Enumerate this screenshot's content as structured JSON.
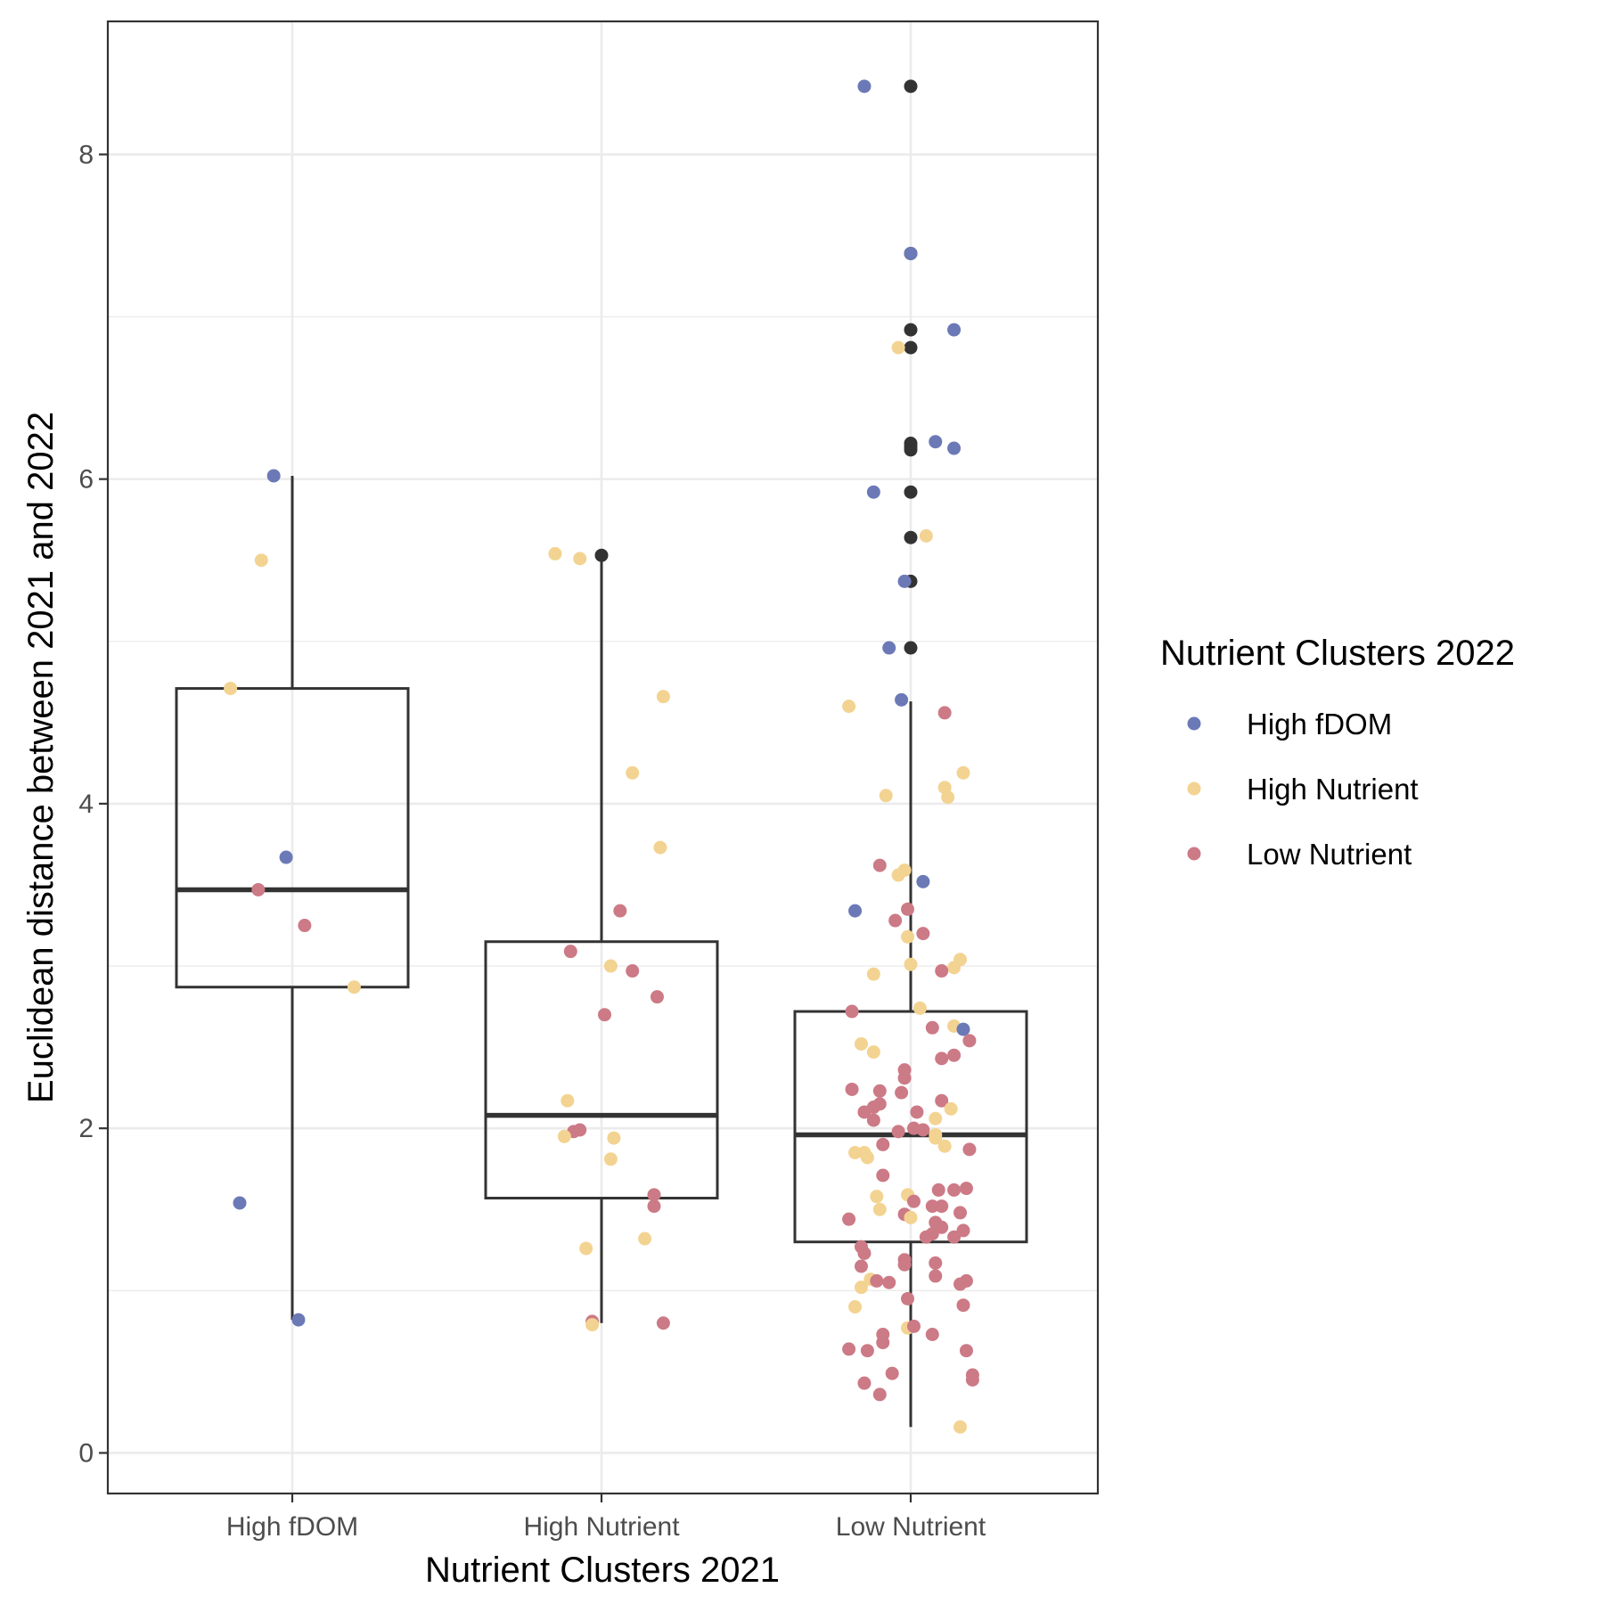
{
  "chart_data": {
    "type": "boxplot-jitter",
    "title": "",
    "xlabel": "Nutrient Clusters 2021",
    "ylabel": "Euclidean distance between 2021 and 2022",
    "categories": [
      "High fDOM",
      "High Nutrient",
      "Low Nutrient"
    ],
    "ylim": [
      -0.25,
      8.82
    ],
    "yticks": [
      0,
      2,
      4,
      6,
      8
    ],
    "yticklabels": [
      "0",
      "2",
      "4",
      "6",
      "8"
    ],
    "grid": true,
    "legend": {
      "title": "Nutrient Clusters 2022",
      "position": "right",
      "entries": [
        {
          "name": "High fDOM",
          "color": "#6c79b7"
        },
        {
          "name": "High Nutrient",
          "color": "#f3d391"
        },
        {
          "name": "Low Nutrient",
          "color": "#cc7a86"
        }
      ]
    },
    "colors": {
      "High fDOM": "#6c79b7",
      "High Nutrient": "#f3d391",
      "Low Nutrient": "#cc7a86",
      "outlier": "#333333",
      "box_stroke": "#333333",
      "grid": "#ebebeb",
      "panel_border": "#333333"
    },
    "boxes": [
      {
        "category": "High fDOM",
        "q1": 2.87,
        "median": 3.47,
        "q3": 4.71,
        "whisker_low": 0.82,
        "whisker_high": 6.02
      },
      {
        "category": "High Nutrient",
        "q1": 1.57,
        "median": 2.08,
        "q3": 3.15,
        "whisker_low": 0.8,
        "whisker_high": 5.53
      },
      {
        "category": "Low Nutrient",
        "q1": 1.3,
        "median": 1.96,
        "q3": 2.72,
        "whisker_low": 0.16,
        "whisker_high": 4.63
      }
    ],
    "outliers": [
      {
        "category": "High Nutrient",
        "y": 5.53
      },
      {
        "category": "Low Nutrient",
        "y": 8.42
      },
      {
        "category": "Low Nutrient",
        "y": 7.39
      },
      {
        "category": "Low Nutrient",
        "y": 6.92
      },
      {
        "category": "Low Nutrient",
        "y": 6.81
      },
      {
        "category": "Low Nutrient",
        "y": 6.22
      },
      {
        "category": "Low Nutrient",
        "y": 6.2
      },
      {
        "category": "Low Nutrient",
        "y": 6.18
      },
      {
        "category": "Low Nutrient",
        "y": 5.92
      },
      {
        "category": "Low Nutrient",
        "y": 5.64
      },
      {
        "category": "Low Nutrient",
        "y": 5.37
      },
      {
        "category": "Low Nutrient",
        "y": 4.96
      }
    ],
    "points": [
      {
        "x": "High fDOM",
        "dx": -0.06,
        "y": 6.02,
        "group": "High fDOM"
      },
      {
        "x": "High fDOM",
        "dx": -0.1,
        "y": 5.5,
        "group": "High Nutrient"
      },
      {
        "x": "High fDOM",
        "dx": -0.2,
        "y": 4.71,
        "group": "High Nutrient"
      },
      {
        "x": "High fDOM",
        "dx": -0.02,
        "y": 3.67,
        "group": "High fDOM"
      },
      {
        "x": "High fDOM",
        "dx": -0.11,
        "y": 3.47,
        "group": "Low Nutrient"
      },
      {
        "x": "High fDOM",
        "dx": 0.04,
        "y": 3.25,
        "group": "Low Nutrient"
      },
      {
        "x": "High fDOM",
        "dx": 0.2,
        "y": 2.87,
        "group": "High Nutrient"
      },
      {
        "x": "High fDOM",
        "dx": -0.17,
        "y": 1.54,
        "group": "High fDOM"
      },
      {
        "x": "High fDOM",
        "dx": 0.02,
        "y": 0.82,
        "group": "High fDOM"
      },
      {
        "x": "High Nutrient",
        "dx": -0.15,
        "y": 5.54,
        "group": "High Nutrient"
      },
      {
        "x": "High Nutrient",
        "dx": -0.07,
        "y": 5.51,
        "group": "High Nutrient"
      },
      {
        "x": "High Nutrient",
        "dx": 0.2,
        "y": 4.66,
        "group": "High Nutrient"
      },
      {
        "x": "High Nutrient",
        "dx": 0.1,
        "y": 4.19,
        "group": "High Nutrient"
      },
      {
        "x": "High Nutrient",
        "dx": 0.19,
        "y": 3.73,
        "group": "High Nutrient"
      },
      {
        "x": "High Nutrient",
        "dx": 0.06,
        "y": 3.34,
        "group": "Low Nutrient"
      },
      {
        "x": "High Nutrient",
        "dx": -0.1,
        "y": 3.09,
        "group": "Low Nutrient"
      },
      {
        "x": "High Nutrient",
        "dx": 0.03,
        "y": 3.0,
        "group": "High Nutrient"
      },
      {
        "x": "High Nutrient",
        "dx": 0.1,
        "y": 2.97,
        "group": "Low Nutrient"
      },
      {
        "x": "High Nutrient",
        "dx": 0.18,
        "y": 2.81,
        "group": "Low Nutrient"
      },
      {
        "x": "High Nutrient",
        "dx": 0.01,
        "y": 2.7,
        "group": "Low Nutrient"
      },
      {
        "x": "High Nutrient",
        "dx": -0.11,
        "y": 2.17,
        "group": "High Nutrient"
      },
      {
        "x": "High Nutrient",
        "dx": -0.09,
        "y": 1.98,
        "group": "Low Nutrient"
      },
      {
        "x": "High Nutrient",
        "dx": -0.07,
        "y": 1.99,
        "group": "Low Nutrient"
      },
      {
        "x": "High Nutrient",
        "dx": -0.12,
        "y": 1.95,
        "group": "High Nutrient"
      },
      {
        "x": "High Nutrient",
        "dx": 0.04,
        "y": 1.94,
        "group": "High Nutrient"
      },
      {
        "x": "High Nutrient",
        "dx": 0.03,
        "y": 1.81,
        "group": "High Nutrient"
      },
      {
        "x": "High Nutrient",
        "dx": 0.17,
        "y": 1.59,
        "group": "Low Nutrient"
      },
      {
        "x": "High Nutrient",
        "dx": 0.17,
        "y": 1.52,
        "group": "Low Nutrient"
      },
      {
        "x": "High Nutrient",
        "dx": 0.14,
        "y": 1.32,
        "group": "High Nutrient"
      },
      {
        "x": "High Nutrient",
        "dx": -0.05,
        "y": 1.26,
        "group": "High Nutrient"
      },
      {
        "x": "High Nutrient",
        "dx": -0.03,
        "y": 0.81,
        "group": "Low Nutrient"
      },
      {
        "x": "High Nutrient",
        "dx": -0.03,
        "y": 0.79,
        "group": "High Nutrient"
      },
      {
        "x": "High Nutrient",
        "dx": 0.2,
        "y": 0.8,
        "group": "Low Nutrient"
      },
      {
        "x": "Low Nutrient",
        "dx": -0.15,
        "y": 8.42,
        "group": "High fDOM"
      },
      {
        "x": "Low Nutrient",
        "dx": 0.0,
        "y": 7.39,
        "group": "High fDOM"
      },
      {
        "x": "Low Nutrient",
        "dx": 0.14,
        "y": 6.92,
        "group": "High fDOM"
      },
      {
        "x": "Low Nutrient",
        "dx": -0.04,
        "y": 6.81,
        "group": "High Nutrient"
      },
      {
        "x": "Low Nutrient",
        "dx": 0.08,
        "y": 6.23,
        "group": "High fDOM"
      },
      {
        "x": "Low Nutrient",
        "dx": 0.14,
        "y": 6.19,
        "group": "High fDOM"
      },
      {
        "x": "Low Nutrient",
        "dx": -0.12,
        "y": 5.92,
        "group": "High fDOM"
      },
      {
        "x": "Low Nutrient",
        "dx": 0.05,
        "y": 5.65,
        "group": "High Nutrient"
      },
      {
        "x": "Low Nutrient",
        "dx": -0.02,
        "y": 5.37,
        "group": "High fDOM"
      },
      {
        "x": "Low Nutrient",
        "dx": -0.07,
        "y": 4.96,
        "group": "High fDOM"
      },
      {
        "x": "Low Nutrient",
        "dx": -0.03,
        "y": 4.64,
        "group": "High fDOM"
      },
      {
        "x": "Low Nutrient",
        "dx": -0.2,
        "y": 4.6,
        "group": "High Nutrient"
      },
      {
        "x": "Low Nutrient",
        "dx": 0.11,
        "y": 4.56,
        "group": "Low Nutrient"
      },
      {
        "x": "Low Nutrient",
        "dx": 0.17,
        "y": 4.19,
        "group": "High Nutrient"
      },
      {
        "x": "Low Nutrient",
        "dx": 0.11,
        "y": 4.1,
        "group": "High Nutrient"
      },
      {
        "x": "Low Nutrient",
        "dx": -0.08,
        "y": 4.05,
        "group": "High Nutrient"
      },
      {
        "x": "Low Nutrient",
        "dx": 0.12,
        "y": 4.04,
        "group": "High Nutrient"
      },
      {
        "x": "Low Nutrient",
        "dx": -0.1,
        "y": 3.62,
        "group": "Low Nutrient"
      },
      {
        "x": "Low Nutrient",
        "dx": -0.02,
        "y": 3.59,
        "group": "High Nutrient"
      },
      {
        "x": "Low Nutrient",
        "dx": -0.04,
        "y": 3.56,
        "group": "High Nutrient"
      },
      {
        "x": "Low Nutrient",
        "dx": 0.04,
        "y": 3.52,
        "group": "High fDOM"
      },
      {
        "x": "Low Nutrient",
        "dx": -0.18,
        "y": 3.34,
        "group": "High fDOM"
      },
      {
        "x": "Low Nutrient",
        "dx": -0.01,
        "y": 3.35,
        "group": "Low Nutrient"
      },
      {
        "x": "Low Nutrient",
        "dx": -0.05,
        "y": 3.28,
        "group": "Low Nutrient"
      },
      {
        "x": "Low Nutrient",
        "dx": 0.04,
        "y": 3.2,
        "group": "Low Nutrient"
      },
      {
        "x": "Low Nutrient",
        "dx": -0.01,
        "y": 3.18,
        "group": "High Nutrient"
      },
      {
        "x": "Low Nutrient",
        "dx": 0.16,
        "y": 3.04,
        "group": "High Nutrient"
      },
      {
        "x": "Low Nutrient",
        "dx": 0.0,
        "y": 3.01,
        "group": "High Nutrient"
      },
      {
        "x": "Low Nutrient",
        "dx": 0.14,
        "y": 2.99,
        "group": "High Nutrient"
      },
      {
        "x": "Low Nutrient",
        "dx": 0.1,
        "y": 2.97,
        "group": "Low Nutrient"
      },
      {
        "x": "Low Nutrient",
        "dx": -0.12,
        "y": 2.95,
        "group": "High Nutrient"
      },
      {
        "x": "Low Nutrient",
        "dx": 0.03,
        "y": 2.74,
        "group": "High Nutrient"
      },
      {
        "x": "Low Nutrient",
        "dx": -0.19,
        "y": 2.72,
        "group": "Low Nutrient"
      },
      {
        "x": "Low Nutrient",
        "dx": 0.14,
        "y": 2.63,
        "group": "High Nutrient"
      },
      {
        "x": "Low Nutrient",
        "dx": 0.07,
        "y": 2.62,
        "group": "Low Nutrient"
      },
      {
        "x": "Low Nutrient",
        "dx": 0.17,
        "y": 2.61,
        "group": "High fDOM"
      },
      {
        "x": "Low Nutrient",
        "dx": 0.19,
        "y": 2.54,
        "group": "Low Nutrient"
      },
      {
        "x": "Low Nutrient",
        "dx": -0.16,
        "y": 2.52,
        "group": "High Nutrient"
      },
      {
        "x": "Low Nutrient",
        "dx": -0.12,
        "y": 2.47,
        "group": "High Nutrient"
      },
      {
        "x": "Low Nutrient",
        "dx": 0.14,
        "y": 2.45,
        "group": "Low Nutrient"
      },
      {
        "x": "Low Nutrient",
        "dx": 0.1,
        "y": 2.43,
        "group": "Low Nutrient"
      },
      {
        "x": "Low Nutrient",
        "dx": -0.02,
        "y": 2.36,
        "group": "Low Nutrient"
      },
      {
        "x": "Low Nutrient",
        "dx": -0.02,
        "y": 2.31,
        "group": "Low Nutrient"
      },
      {
        "x": "Low Nutrient",
        "dx": -0.19,
        "y": 2.24,
        "group": "Low Nutrient"
      },
      {
        "x": "Low Nutrient",
        "dx": -0.1,
        "y": 2.23,
        "group": "Low Nutrient"
      },
      {
        "x": "Low Nutrient",
        "dx": -0.03,
        "y": 2.22,
        "group": "Low Nutrient"
      },
      {
        "x": "Low Nutrient",
        "dx": 0.1,
        "y": 2.17,
        "group": "Low Nutrient"
      },
      {
        "x": "Low Nutrient",
        "dx": -0.1,
        "y": 2.15,
        "group": "Low Nutrient"
      },
      {
        "x": "Low Nutrient",
        "dx": -0.12,
        "y": 2.13,
        "group": "Low Nutrient"
      },
      {
        "x": "Low Nutrient",
        "dx": 0.13,
        "y": 2.12,
        "group": "High Nutrient"
      },
      {
        "x": "Low Nutrient",
        "dx": -0.15,
        "y": 2.1,
        "group": "Low Nutrient"
      },
      {
        "x": "Low Nutrient",
        "dx": 0.02,
        "y": 2.1,
        "group": "Low Nutrient"
      },
      {
        "x": "Low Nutrient",
        "dx": 0.08,
        "y": 2.06,
        "group": "High Nutrient"
      },
      {
        "x": "Low Nutrient",
        "dx": -0.12,
        "y": 2.05,
        "group": "Low Nutrient"
      },
      {
        "x": "Low Nutrient",
        "dx": 0.01,
        "y": 2.0,
        "group": "Low Nutrient"
      },
      {
        "x": "Low Nutrient",
        "dx": 0.04,
        "y": 1.99,
        "group": "Low Nutrient"
      },
      {
        "x": "Low Nutrient",
        "dx": -0.04,
        "y": 1.98,
        "group": "Low Nutrient"
      },
      {
        "x": "Low Nutrient",
        "dx": 0.08,
        "y": 1.96,
        "group": "High Nutrient"
      },
      {
        "x": "Low Nutrient",
        "dx": 0.08,
        "y": 1.94,
        "group": "High Nutrient"
      },
      {
        "x": "Low Nutrient",
        "dx": -0.09,
        "y": 1.9,
        "group": "Low Nutrient"
      },
      {
        "x": "Low Nutrient",
        "dx": 0.11,
        "y": 1.89,
        "group": "High Nutrient"
      },
      {
        "x": "Low Nutrient",
        "dx": 0.19,
        "y": 1.87,
        "group": "Low Nutrient"
      },
      {
        "x": "Low Nutrient",
        "dx": -0.18,
        "y": 1.85,
        "group": "High Nutrient"
      },
      {
        "x": "Low Nutrient",
        "dx": -0.15,
        "y": 1.85,
        "group": "High Nutrient"
      },
      {
        "x": "Low Nutrient",
        "dx": -0.14,
        "y": 1.82,
        "group": "High Nutrient"
      },
      {
        "x": "Low Nutrient",
        "dx": -0.09,
        "y": 1.71,
        "group": "Low Nutrient"
      },
      {
        "x": "Low Nutrient",
        "dx": 0.09,
        "y": 1.62,
        "group": "Low Nutrient"
      },
      {
        "x": "Low Nutrient",
        "dx": 0.14,
        "y": 1.62,
        "group": "Low Nutrient"
      },
      {
        "x": "Low Nutrient",
        "dx": 0.18,
        "y": 1.63,
        "group": "Low Nutrient"
      },
      {
        "x": "Low Nutrient",
        "dx": -0.11,
        "y": 1.58,
        "group": "High Nutrient"
      },
      {
        "x": "Low Nutrient",
        "dx": -0.01,
        "y": 1.59,
        "group": "High Nutrient"
      },
      {
        "x": "Low Nutrient",
        "dx": 0.01,
        "y": 1.55,
        "group": "Low Nutrient"
      },
      {
        "x": "Low Nutrient",
        "dx": 0.07,
        "y": 1.52,
        "group": "Low Nutrient"
      },
      {
        "x": "Low Nutrient",
        "dx": 0.1,
        "y": 1.52,
        "group": "Low Nutrient"
      },
      {
        "x": "Low Nutrient",
        "dx": -0.1,
        "y": 1.5,
        "group": "High Nutrient"
      },
      {
        "x": "Low Nutrient",
        "dx": 0.16,
        "y": 1.48,
        "group": "Low Nutrient"
      },
      {
        "x": "Low Nutrient",
        "dx": -0.02,
        "y": 1.47,
        "group": "Low Nutrient"
      },
      {
        "x": "Low Nutrient",
        "dx": 0.0,
        "y": 1.45,
        "group": "High Nutrient"
      },
      {
        "x": "Low Nutrient",
        "dx": -0.2,
        "y": 1.44,
        "group": "Low Nutrient"
      },
      {
        "x": "Low Nutrient",
        "dx": 0.08,
        "y": 1.42,
        "group": "Low Nutrient"
      },
      {
        "x": "Low Nutrient",
        "dx": 0.1,
        "y": 1.39,
        "group": "Low Nutrient"
      },
      {
        "x": "Low Nutrient",
        "dx": 0.17,
        "y": 1.37,
        "group": "Low Nutrient"
      },
      {
        "x": "Low Nutrient",
        "dx": 0.07,
        "y": 1.35,
        "group": "Low Nutrient"
      },
      {
        "x": "Low Nutrient",
        "dx": 0.14,
        "y": 1.33,
        "group": "Low Nutrient"
      },
      {
        "x": "Low Nutrient",
        "dx": 0.05,
        "y": 1.33,
        "group": "Low Nutrient"
      },
      {
        "x": "Low Nutrient",
        "dx": -0.16,
        "y": 1.27,
        "group": "Low Nutrient"
      },
      {
        "x": "Low Nutrient",
        "dx": -0.15,
        "y": 1.23,
        "group": "Low Nutrient"
      },
      {
        "x": "Low Nutrient",
        "dx": -0.02,
        "y": 1.19,
        "group": "Low Nutrient"
      },
      {
        "x": "Low Nutrient",
        "dx": -0.02,
        "y": 1.16,
        "group": "Low Nutrient"
      },
      {
        "x": "Low Nutrient",
        "dx": 0.08,
        "y": 1.17,
        "group": "Low Nutrient"
      },
      {
        "x": "Low Nutrient",
        "dx": -0.16,
        "y": 1.15,
        "group": "Low Nutrient"
      },
      {
        "x": "Low Nutrient",
        "dx": 0.08,
        "y": 1.09,
        "group": "Low Nutrient"
      },
      {
        "x": "Low Nutrient",
        "dx": -0.13,
        "y": 1.07,
        "group": "High Nutrient"
      },
      {
        "x": "Low Nutrient",
        "dx": -0.11,
        "y": 1.06,
        "group": "Low Nutrient"
      },
      {
        "x": "Low Nutrient",
        "dx": -0.07,
        "y": 1.05,
        "group": "Low Nutrient"
      },
      {
        "x": "Low Nutrient",
        "dx": 0.18,
        "y": 1.06,
        "group": "Low Nutrient"
      },
      {
        "x": "Low Nutrient",
        "dx": 0.16,
        "y": 1.04,
        "group": "Low Nutrient"
      },
      {
        "x": "Low Nutrient",
        "dx": -0.16,
        "y": 1.02,
        "group": "High Nutrient"
      },
      {
        "x": "Low Nutrient",
        "dx": -0.01,
        "y": 0.95,
        "group": "Low Nutrient"
      },
      {
        "x": "Low Nutrient",
        "dx": 0.17,
        "y": 0.91,
        "group": "Low Nutrient"
      },
      {
        "x": "Low Nutrient",
        "dx": -0.18,
        "y": 0.9,
        "group": "High Nutrient"
      },
      {
        "x": "Low Nutrient",
        "dx": -0.01,
        "y": 0.77,
        "group": "High Nutrient"
      },
      {
        "x": "Low Nutrient",
        "dx": 0.01,
        "y": 0.78,
        "group": "Low Nutrient"
      },
      {
        "x": "Low Nutrient",
        "dx": 0.07,
        "y": 0.73,
        "group": "Low Nutrient"
      },
      {
        "x": "Low Nutrient",
        "dx": -0.09,
        "y": 0.73,
        "group": "Low Nutrient"
      },
      {
        "x": "Low Nutrient",
        "dx": -0.09,
        "y": 0.68,
        "group": "Low Nutrient"
      },
      {
        "x": "Low Nutrient",
        "dx": -0.2,
        "y": 0.64,
        "group": "Low Nutrient"
      },
      {
        "x": "Low Nutrient",
        "dx": -0.14,
        "y": 0.63,
        "group": "Low Nutrient"
      },
      {
        "x": "Low Nutrient",
        "dx": 0.18,
        "y": 0.63,
        "group": "Low Nutrient"
      },
      {
        "x": "Low Nutrient",
        "dx": -0.06,
        "y": 0.49,
        "group": "Low Nutrient"
      },
      {
        "x": "Low Nutrient",
        "dx": 0.2,
        "y": 0.48,
        "group": "Low Nutrient"
      },
      {
        "x": "Low Nutrient",
        "dx": 0.2,
        "y": 0.45,
        "group": "Low Nutrient"
      },
      {
        "x": "Low Nutrient",
        "dx": -0.15,
        "y": 0.43,
        "group": "Low Nutrient"
      },
      {
        "x": "Low Nutrient",
        "dx": -0.1,
        "y": 0.36,
        "group": "Low Nutrient"
      },
      {
        "x": "Low Nutrient",
        "dx": 0.16,
        "y": 0.16,
        "group": "High Nutrient"
      }
    ]
  }
}
